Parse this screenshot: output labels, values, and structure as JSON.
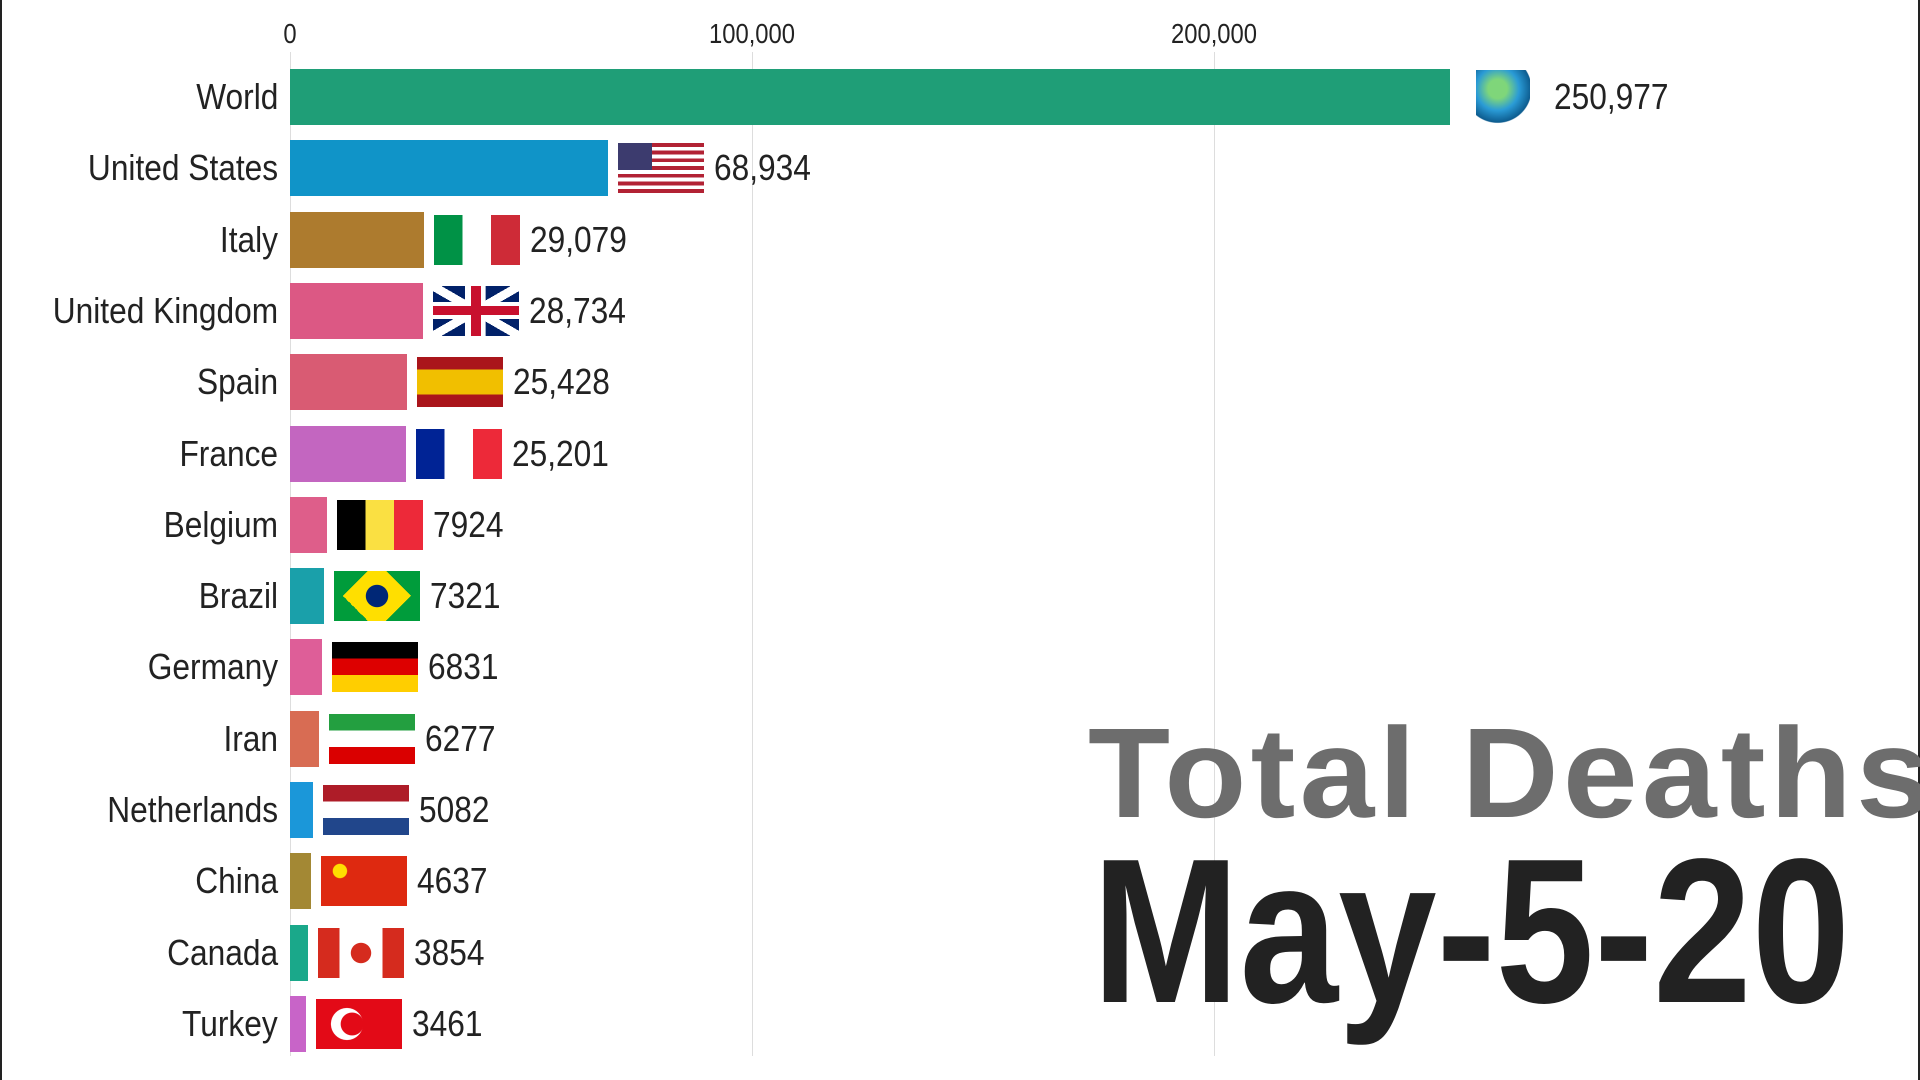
{
  "chart_data": {
    "type": "bar",
    "orientation": "horizontal",
    "title": "Total Deaths",
    "date": "May-5-20",
    "xlim": [
      0,
      260000
    ],
    "xticks": [
      "0",
      "100,000",
      "200,000"
    ],
    "xtick_values": [
      0,
      100000,
      200000
    ],
    "grid": true,
    "categories": [
      "World",
      "United States",
      "Italy",
      "United Kingdom",
      "Spain",
      "France",
      "Belgium",
      "Brazil",
      "Germany",
      "Iran",
      "Netherlands",
      "China",
      "Canada",
      "Turkey"
    ],
    "values": [
      250977,
      68934,
      29079,
      28734,
      25428,
      25201,
      7924,
      7321,
      6831,
      6277,
      5082,
      4637,
      3854,
      3461
    ],
    "value_labels": [
      "250,977",
      "68,934",
      "29,079",
      "28,734",
      "25,428",
      "25,201",
      "7924",
      "7321",
      "6831",
      "6277",
      "5082",
      "4637",
      "3854",
      "3461"
    ],
    "colors": [
      "#1f9e77",
      "#1094c8",
      "#ad7b2e",
      "#dc5884",
      "#d95b73",
      "#c366c0",
      "#de5e8a",
      "#1aa0aa",
      "#de5e98",
      "#d86c53",
      "#1b97d9",
      "#a38834",
      "#1aa88a",
      "#c864c8"
    ],
    "icons": [
      "globe-icon",
      "us-flag-icon",
      "italy-flag-icon",
      "uk-flag-icon",
      "spain-flag-icon",
      "france-flag-icon",
      "belgium-flag-icon",
      "brazil-flag-icon",
      "germany-flag-icon",
      "iran-flag-icon",
      "netherlands-flag-icon",
      "china-flag-icon",
      "canada-flag-icon",
      "turkey-flag-icon"
    ]
  }
}
